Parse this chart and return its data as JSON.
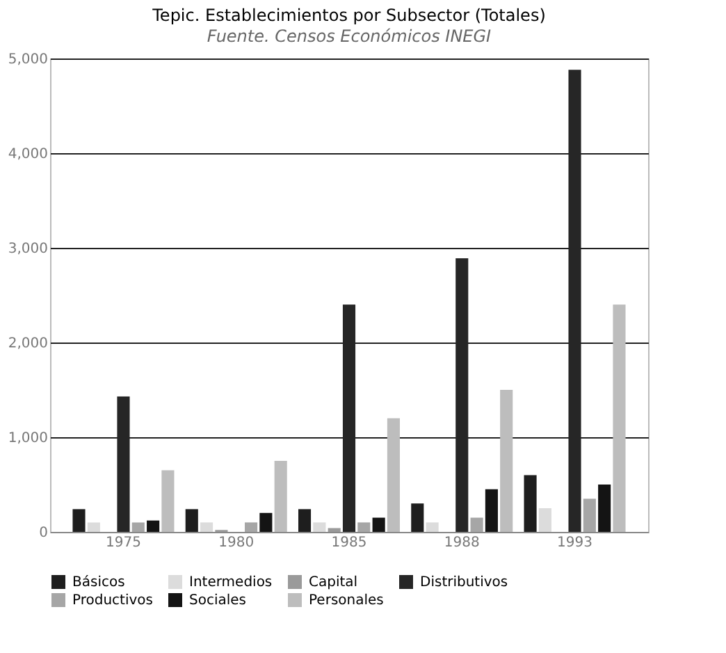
{
  "chart_data": {
    "type": "bar",
    "title": "Tepic. Establecimientos por Subsector (Totales)",
    "categories": [
      "1975",
      "1980",
      "1985",
      "1988",
      "1993"
    ],
    "series": [
      {
        "name": "Básicos",
        "color": "#1e1e1e",
        "values": [
          240,
          240,
          240,
          300,
          600
        ]
      },
      {
        "name": "Intermedios",
        "color": "#dcdcdc",
        "values": [
          100,
          100,
          100,
          100,
          250
        ]
      },
      {
        "name": "Capital",
        "color": "#9a9a9a",
        "values": [
          0,
          20,
          40,
          0,
          0
        ]
      },
      {
        "name": "Distributivos",
        "color": "#262626",
        "values": [
          1430,
          0,
          2400,
          2890,
          4880
        ]
      },
      {
        "name": "Productivos",
        "color": "#a6a6a6",
        "values": [
          100,
          100,
          100,
          150,
          350
        ]
      },
      {
        "name": "Sociales",
        "color": "#141414",
        "values": [
          120,
          200,
          150,
          450,
          500
        ]
      },
      {
        "name": "Personales",
        "color": "#bdbdbd",
        "values": [
          650,
          750,
          1200,
          1500,
          2400
        ]
      }
    ],
    "ylim": [
      0,
      5000
    ],
    "yticks": [
      0,
      {
        "value": 1000,
        "label": "1,000"
      },
      {
        "value": 2000,
        "label": "2,000"
      },
      {
        "value": 3000,
        "label": "3,000"
      },
      {
        "value": 4000,
        "label": "4,000"
      },
      {
        "value": 5000,
        "label": "5,000"
      }
    ],
    "grid": "y",
    "legend": "bottom",
    "annotations": [
      "Fuente. Censos Económicos INEGI"
    ]
  }
}
